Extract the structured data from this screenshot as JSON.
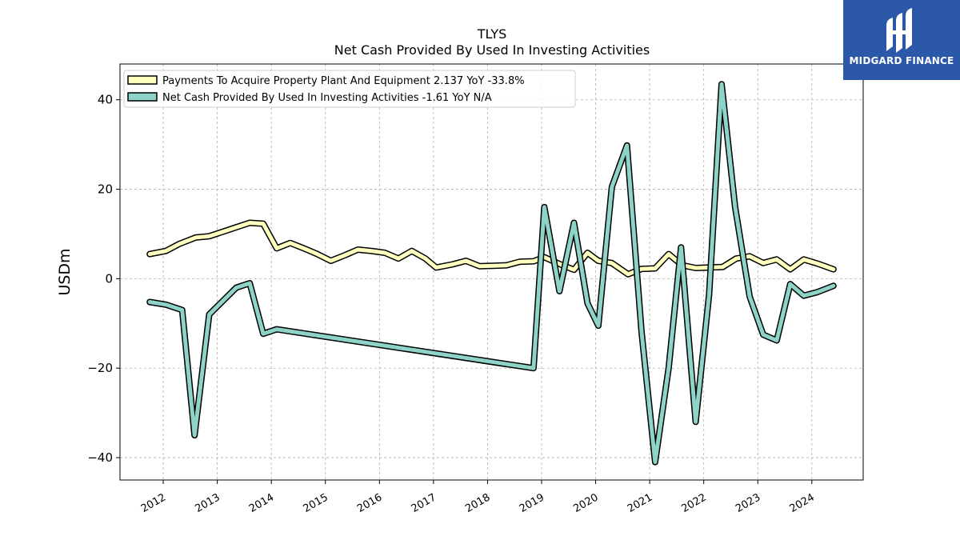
{
  "brand": {
    "name": "MIDGARD FINANCE",
    "bg_color": "#2b58a8"
  },
  "chart_data": {
    "type": "line",
    "title": "TLYS",
    "subtitle": "Net Cash Provided By Used In Investing Activities",
    "ylabel": "USDm",
    "xlabel": "",
    "ylim": [
      -45,
      48
    ],
    "xlim": [
      2011.2,
      2024.95
    ],
    "yticks": [
      -40,
      -20,
      0,
      20,
      40
    ],
    "ytick_labels": [
      "−40",
      "−20",
      "0",
      "20",
      "40"
    ],
    "xticks": [
      2012,
      2013,
      2014,
      2015,
      2016,
      2017,
      2018,
      2019,
      2020,
      2021,
      2022,
      2023,
      2024
    ],
    "xtick_labels": [
      "2012",
      "2013",
      "2014",
      "2015",
      "2016",
      "2017",
      "2018",
      "2019",
      "2020",
      "2021",
      "2022",
      "2023",
      "2024"
    ],
    "grid": true,
    "legend_position": "top-left",
    "series": [
      {
        "name": "Payments To Acquire Property Plant And Equipment",
        "legend_label": "Payments To Acquire Property Plant And Equipment  2.137 YoY -33.8%",
        "color": "#ffffbf",
        "points": [
          [
            2011.75,
            5.5
          ],
          [
            2012.05,
            6.2
          ],
          [
            2012.3,
            7.8
          ],
          [
            2012.6,
            9.2
          ],
          [
            2012.85,
            9.5
          ],
          [
            2013.1,
            10.5
          ],
          [
            2013.35,
            11.5
          ],
          [
            2013.6,
            12.5
          ],
          [
            2013.85,
            12.3
          ],
          [
            2014.1,
            6.8
          ],
          [
            2014.35,
            8.0
          ],
          [
            2014.6,
            6.8
          ],
          [
            2014.85,
            5.5
          ],
          [
            2015.1,
            4.0
          ],
          [
            2015.35,
            5.2
          ],
          [
            2015.6,
            6.5
          ],
          [
            2015.85,
            6.2
          ],
          [
            2016.1,
            5.8
          ],
          [
            2016.35,
            4.5
          ],
          [
            2016.6,
            6.2
          ],
          [
            2016.85,
            4.5
          ],
          [
            2017.05,
            2.5
          ],
          [
            2017.35,
            3.2
          ],
          [
            2017.6,
            4.0
          ],
          [
            2017.85,
            2.8
          ],
          [
            2018.1,
            2.9
          ],
          [
            2018.35,
            3.0
          ],
          [
            2018.6,
            3.8
          ],
          [
            2018.85,
            3.9
          ],
          [
            2019.05,
            4.8
          ],
          [
            2019.35,
            3.2
          ],
          [
            2019.6,
            2.0
          ],
          [
            2019.85,
            5.8
          ],
          [
            2020.05,
            4.0
          ],
          [
            2020.3,
            3.5
          ],
          [
            2020.6,
            1.0
          ],
          [
            2020.85,
            2.2
          ],
          [
            2021.1,
            2.3
          ],
          [
            2021.35,
            5.5
          ],
          [
            2021.6,
            3.0
          ],
          [
            2021.85,
            2.4
          ],
          [
            2022.1,
            2.5
          ],
          [
            2022.35,
            2.6
          ],
          [
            2022.6,
            4.5
          ],
          [
            2022.85,
            5.0
          ],
          [
            2023.1,
            3.5
          ],
          [
            2023.35,
            4.3
          ],
          [
            2023.6,
            2.1
          ],
          [
            2023.85,
            4.3
          ],
          [
            2024.1,
            3.4
          ],
          [
            2024.4,
            2.1
          ]
        ]
      },
      {
        "name": "Net Cash Provided By Used In Investing Activities",
        "legend_label": "Net Cash Provided By Used In Investing Activities  -1.61 YoY N/A",
        "color": "#8dd3c7",
        "points": [
          [
            2011.75,
            -5.2
          ],
          [
            2012.05,
            -5.8
          ],
          [
            2012.35,
            -7.0
          ],
          [
            2012.58,
            -35.0
          ],
          [
            2012.85,
            -8.0
          ],
          [
            2013.1,
            -5.0
          ],
          [
            2013.35,
            -2.0
          ],
          [
            2013.6,
            -1.0
          ],
          [
            2013.85,
            -12.3
          ],
          [
            2014.1,
            -11.3
          ],
          [
            2018.85,
            -20.0
          ],
          [
            2019.05,
            16.0
          ],
          [
            2019.33,
            -2.8
          ],
          [
            2019.6,
            12.5
          ],
          [
            2019.85,
            -5.5
          ],
          [
            2020.05,
            -10.5
          ],
          [
            2020.3,
            20.5
          ],
          [
            2020.58,
            29.8
          ],
          [
            2020.85,
            -12.0
          ],
          [
            2021.1,
            -41.0
          ],
          [
            2021.35,
            -20.0
          ],
          [
            2021.58,
            7.0
          ],
          [
            2021.85,
            -32.0
          ],
          [
            2022.1,
            -3.5
          ],
          [
            2022.33,
            43.5
          ],
          [
            2022.58,
            16.0
          ],
          [
            2022.85,
            -4.0
          ],
          [
            2023.1,
            -12.5
          ],
          [
            2023.35,
            -13.8
          ],
          [
            2023.6,
            -1.2
          ],
          [
            2023.85,
            -3.8
          ],
          [
            2024.1,
            -3.0
          ],
          [
            2024.4,
            -1.6
          ]
        ]
      }
    ]
  }
}
